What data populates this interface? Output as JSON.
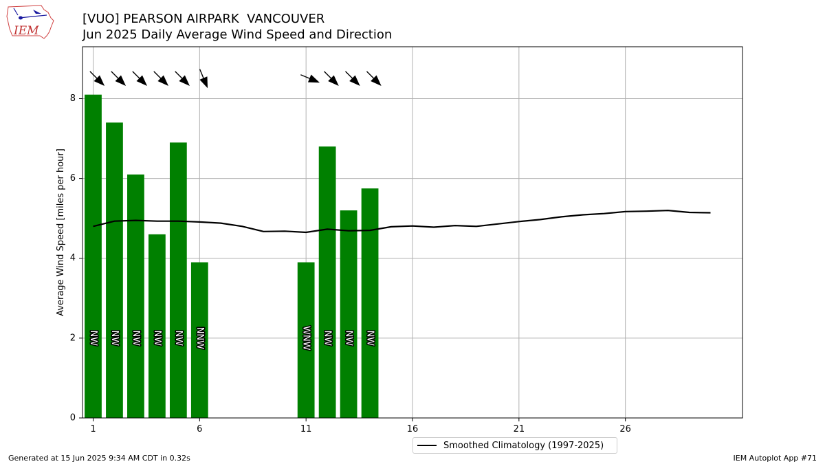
{
  "header": {
    "title_line1": "[VUO] PEARSON AIRPARK  VANCOUVER",
    "title_line2": "Jun 2025 Daily Average Wind Speed and Direction"
  },
  "logo": {
    "text": "IEM",
    "icon": "iem-iowa-logo"
  },
  "footer": {
    "left": "Generated at 15 Jun 2025 9:34 AM CDT in 0.32s",
    "right": "IEM Autoplot App #71"
  },
  "colors": {
    "bar": "#008000",
    "climatology": "#000000",
    "grid": "#b0b0b0"
  },
  "chart_data": {
    "type": "bar",
    "title": "Jun 2025 Daily Average Wind Speed and Direction",
    "ylabel": "Average Wind Speed [miles per hour]",
    "xlabel": "",
    "xlim": [
      0.5,
      31.5
    ],
    "ylim": [
      0,
      9.3
    ],
    "xticks": [
      1,
      6,
      11,
      16,
      21,
      26
    ],
    "yticks": [
      0,
      2,
      4,
      6,
      8
    ],
    "grid": true,
    "legend_position": "bottom-center",
    "series": [
      {
        "type": "bar",
        "days": [
          1,
          2,
          3,
          4,
          5,
          6,
          11,
          12,
          13,
          14
        ],
        "values": [
          8.1,
          7.4,
          6.1,
          4.6,
          6.9,
          3.9,
          3.9,
          6.8,
          5.2,
          5.75
        ],
        "direction_labels": [
          "NW",
          "NW",
          "NW",
          "NW",
          "NW",
          "NNW",
          "WNW",
          "NW",
          "NW",
          "NW"
        ],
        "direction_deg": [
          315,
          315,
          315,
          315,
          315,
          337.5,
          292.5,
          315,
          315,
          315
        ]
      },
      {
        "type": "line",
        "name": "Smoothed Climatology (1997-2025)",
        "x": [
          1,
          2,
          3,
          4,
          5,
          6,
          7,
          8,
          9,
          10,
          11,
          12,
          13,
          14,
          15,
          16,
          17,
          18,
          19,
          20,
          21,
          22,
          23,
          24,
          25,
          26,
          27,
          28,
          29,
          30
        ],
        "y": [
          4.8,
          4.93,
          4.95,
          4.93,
          4.93,
          4.91,
          4.88,
          4.8,
          4.67,
          4.68,
          4.65,
          4.73,
          4.69,
          4.7,
          4.79,
          4.81,
          4.78,
          4.82,
          4.8,
          4.86,
          4.92,
          4.97,
          5.04,
          5.09,
          5.12,
          5.17,
          5.18,
          5.2,
          5.15,
          5.14
        ]
      }
    ]
  }
}
